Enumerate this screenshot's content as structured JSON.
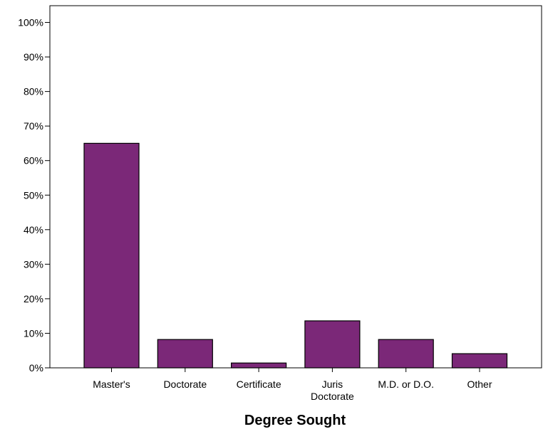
{
  "chart_data": {
    "type": "bar",
    "title": "",
    "xlabel": "Degree Sought",
    "ylabel": "",
    "categories": [
      [
        "Master's"
      ],
      [
        "Doctorate"
      ],
      [
        "Certificate"
      ],
      [
        "Juris",
        "Doctorate"
      ],
      [
        "M.D. or D.O."
      ],
      [
        "Other"
      ]
    ],
    "values": [
      65,
      8.2,
      1.4,
      13.6,
      8.2,
      4.1
    ],
    "value_unit": "%",
    "ylim": [
      0,
      105
    ],
    "yticks": [
      0,
      10,
      20,
      30,
      40,
      50,
      60,
      70,
      80,
      90,
      100
    ],
    "ytick_labels": [
      "0%",
      "10%",
      "20%",
      "30%",
      "40%",
      "50%",
      "60%",
      "70%",
      "80%",
      "90%",
      "100%"
    ],
    "grid": false,
    "legend": "none",
    "colors": {
      "bar_fill": "#7b2878",
      "bar_stroke": "#000000",
      "axis": "#000000"
    }
  }
}
